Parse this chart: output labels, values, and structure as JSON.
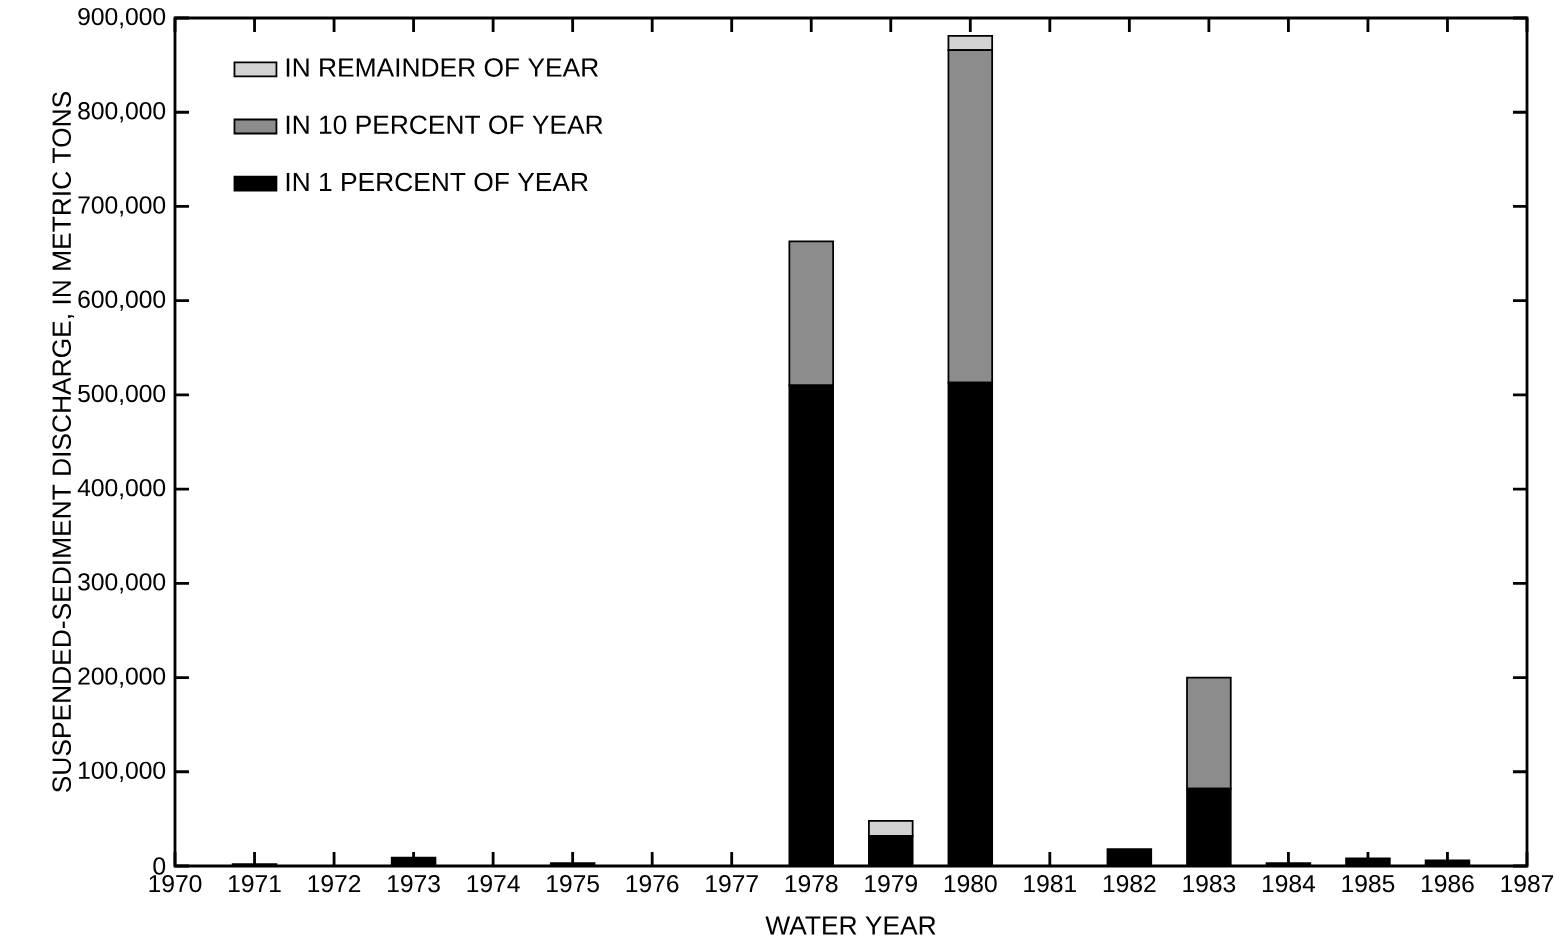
{
  "chart_data": {
    "type": "bar",
    "stacked": true,
    "xlabel": "WATER YEAR",
    "ylabel": "SUSPENDED-SEDIMENT DISCHARGE, IN METRIC TONS",
    "x": [
      1971,
      1973,
      1975,
      1978,
      1979,
      1980,
      1982,
      1983,
      1984,
      1985,
      1986
    ],
    "series": [
      {
        "name": "IN 1 PERCENT OF YEAR",
        "color": "#000000",
        "values": [
          2000,
          9000,
          3000,
          510000,
          32000,
          513000,
          18000,
          82000,
          3000,
          8000,
          6000
        ]
      },
      {
        "name": "IN 10 PERCENT OF YEAR",
        "color": "#8c8c8c",
        "values": [
          0,
          0,
          0,
          153000,
          0,
          353000,
          0,
          118000,
          0,
          0,
          0
        ]
      },
      {
        "name": "IN REMAINDER OF YEAR",
        "color": "#d2d2d2",
        "values": [
          0,
          0,
          0,
          null,
          16000,
          15000,
          0,
          0,
          0,
          0,
          0
        ]
      }
    ],
    "xlim": [
      1970,
      1987
    ],
    "xticks": [
      1970,
      1971,
      1972,
      1973,
      1974,
      1975,
      1976,
      1977,
      1978,
      1979,
      1980,
      1981,
      1982,
      1983,
      1984,
      1985,
      1986,
      1987
    ],
    "ylim": [
      0,
      900000
    ],
    "yticks": [
      {
        "value": 0,
        "label": "0"
      },
      {
        "value": 100000,
        "label": "100,000"
      },
      {
        "value": 200000,
        "label": "200,000"
      },
      {
        "value": 300000,
        "label": "300,000"
      },
      {
        "value": 400000,
        "label": "400,000"
      },
      {
        "value": 500000,
        "label": "500,000"
      },
      {
        "value": 600000,
        "label": "600,000"
      },
      {
        "value": 700000,
        "label": "700,000"
      },
      {
        "value": 800000,
        "label": "800,000"
      },
      {
        "value": 900000,
        "label": "900,000"
      }
    ],
    "legend": "top left",
    "grid": false
  }
}
